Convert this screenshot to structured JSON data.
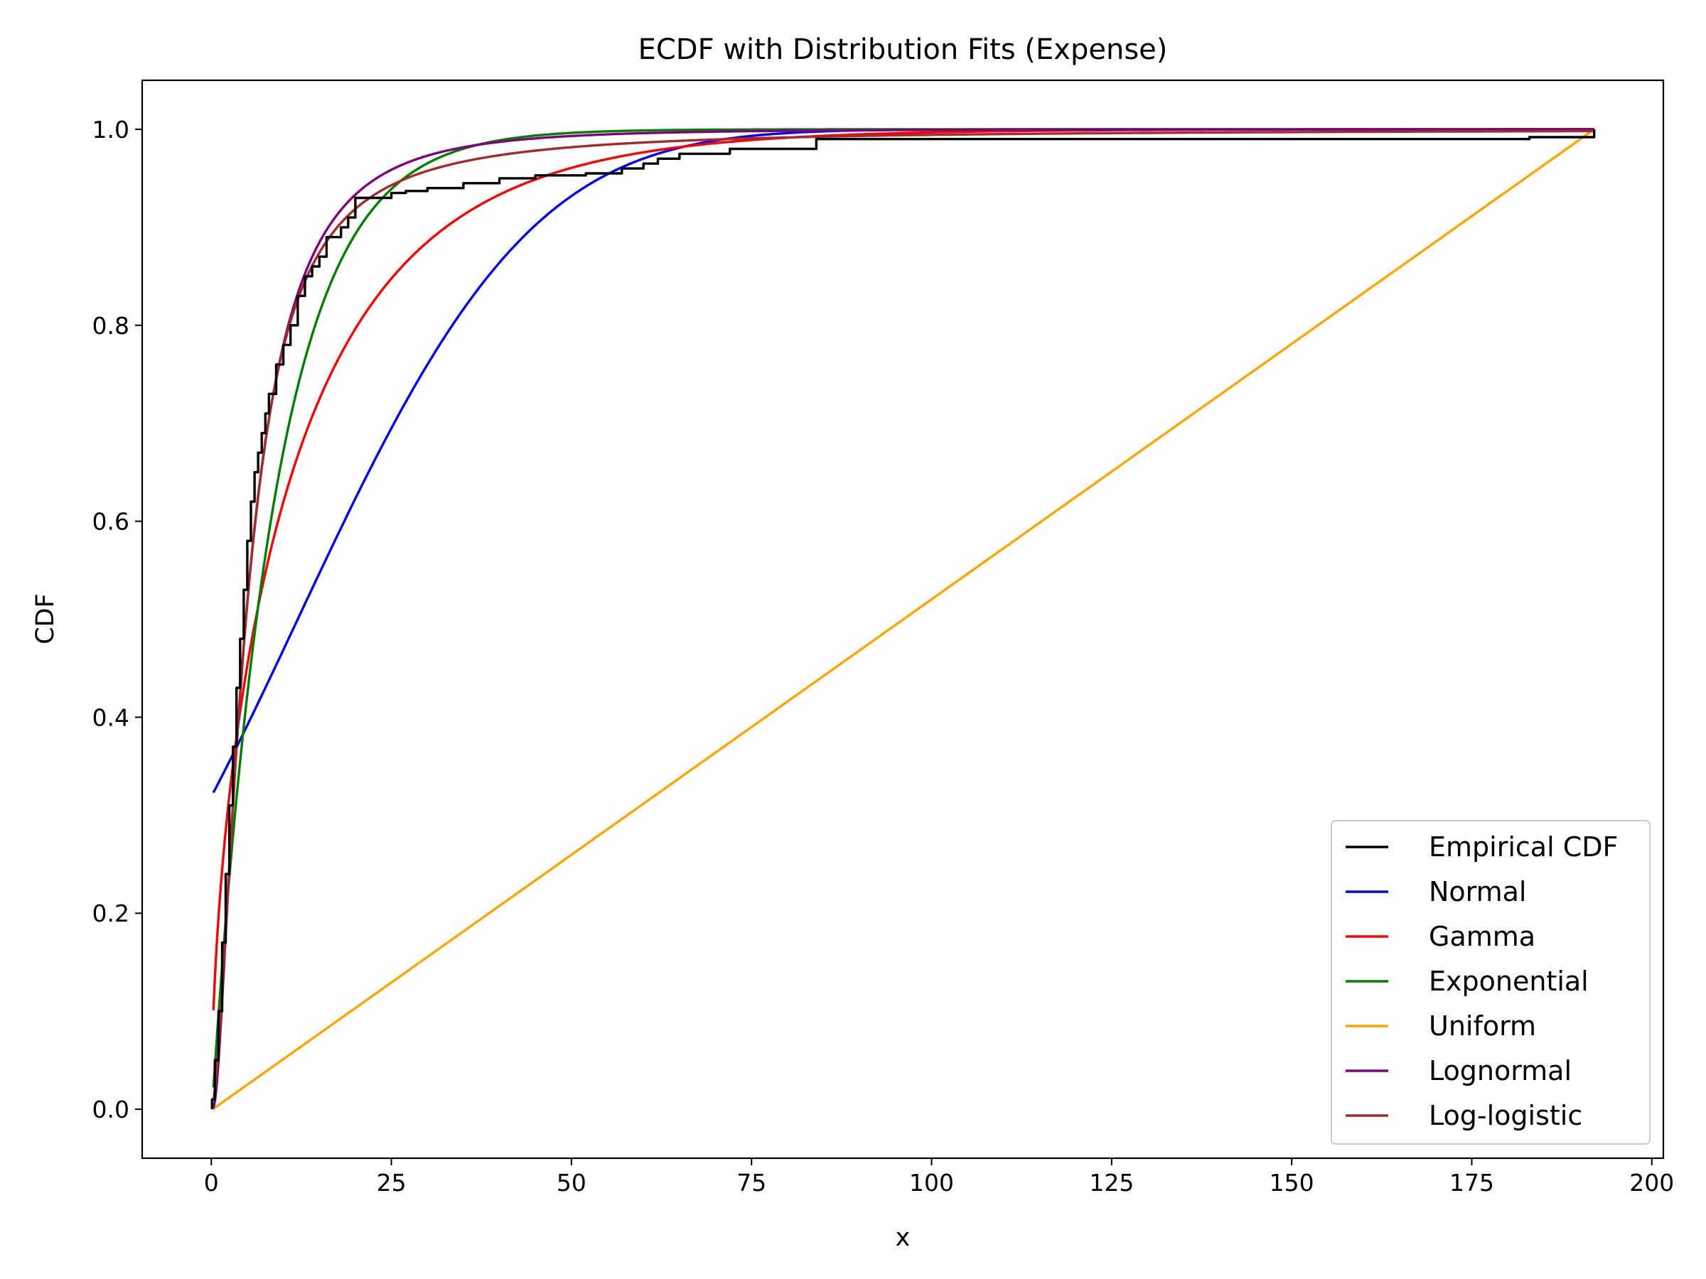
{
  "chart_data": {
    "type": "line",
    "title": "ECDF with Distribution Fits (Expense)",
    "xlabel": "x",
    "ylabel": "CDF",
    "xlim": [
      -9.6,
      201.6
    ],
    "ylim": [
      -0.05,
      1.05
    ],
    "x_ticks": [
      0,
      25,
      50,
      75,
      100,
      125,
      150,
      175,
      200
    ],
    "x_tick_labels": [
      "0",
      "25",
      "50",
      "75",
      "100",
      "125",
      "150",
      "175",
      "200"
    ],
    "y_ticks": [
      0.0,
      0.2,
      0.4,
      0.6,
      0.8,
      1.0
    ],
    "y_tick_labels": [
      "0.0",
      "0.2",
      "0.4",
      "0.6",
      "0.8",
      "1.0"
    ],
    "grid": false,
    "legend_position": "lower-right",
    "series": [
      {
        "name": "Empirical CDF",
        "color": "#000000",
        "style": "step",
        "x": [
          0.1,
          0.5,
          1.0,
          1.5,
          2.0,
          2.5,
          3.0,
          3.5,
          4.0,
          4.5,
          5.0,
          5.5,
          6.0,
          6.5,
          7.0,
          7.5,
          8.0,
          9.0,
          10.0,
          11.0,
          12.0,
          13.0,
          14.0,
          15.0,
          16.0,
          17.0,
          18.0,
          19.0,
          20.0,
          21.0,
          25.0,
          27.0,
          30.0,
          35.0,
          40.0,
          45.0,
          52.0,
          57.0,
          60.0,
          62.0,
          65.0,
          72.0,
          84.0,
          183.0,
          192.0
        ],
        "values": [
          0.01,
          0.05,
          0.1,
          0.17,
          0.24,
          0.31,
          0.37,
          0.43,
          0.48,
          0.53,
          0.58,
          0.62,
          0.65,
          0.67,
          0.69,
          0.71,
          0.73,
          0.76,
          0.78,
          0.8,
          0.83,
          0.85,
          0.86,
          0.87,
          0.89,
          0.89,
          0.9,
          0.91,
          0.93,
          0.93,
          0.935,
          0.937,
          0.94,
          0.945,
          0.95,
          0.953,
          0.955,
          0.96,
          0.965,
          0.97,
          0.975,
          0.98,
          0.99,
          0.992,
          1.0
        ]
      },
      {
        "name": "Normal",
        "color": "#0000ff",
        "dist": "normal",
        "params": {
          "mu": 12.0,
          "sigma": 25.5
        },
        "x_range": [
          0.3,
          192
        ]
      },
      {
        "name": "Gamma",
        "color": "#ff0000",
        "dist": "gamma",
        "params": {
          "shape": 0.56,
          "scale": 22.0
        },
        "x_range": [
          0.3,
          192
        ]
      },
      {
        "name": "Exponential",
        "color": "#008000",
        "dist": "exponential",
        "params": {
          "loc": 0.1,
          "scale": 8.9
        },
        "x_range": [
          0.3,
          192
        ]
      },
      {
        "name": "Uniform",
        "color": "#ffa500",
        "dist": "uniform",
        "params": {
          "a": 0.2,
          "b": 192.0
        },
        "x_range": [
          0.2,
          192
        ]
      },
      {
        "name": "Lognormal",
        "color": "#800080",
        "dist": "lognormal",
        "params": {
          "mu": 1.57,
          "sigma": 0.95
        },
        "x_range": [
          0.3,
          192
        ]
      },
      {
        "name": "Log-logistic",
        "color": "#a52a2a",
        "dist": "loglogistic",
        "params": {
          "alpha": 4.8,
          "beta": 1.7
        },
        "x_range": [
          0.3,
          192
        ]
      }
    ]
  }
}
